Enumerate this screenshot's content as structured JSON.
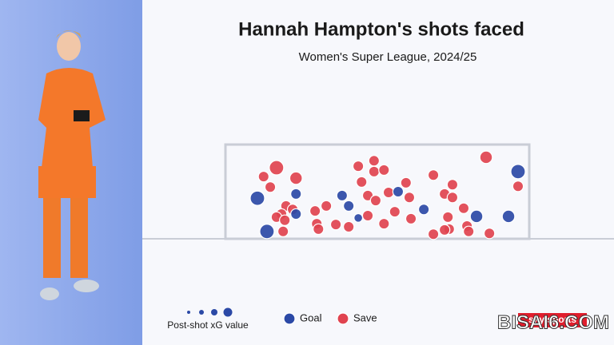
{
  "chart_data": {
    "type": "scatter",
    "title": "Hannah Hampton's shots faced",
    "subtitle": "Women's Super League, 2024/25",
    "size_label": "Post-shot xG value",
    "xlim": [
      0,
      7.32
    ],
    "ylim": [
      0,
      2.44
    ],
    "series": [
      {
        "name": "Goal",
        "color": "#2b49a6",
        "x": [
          0.77,
          1.7,
          2.81,
          2.97,
          4.16,
          4.78,
          3.2,
          1.7,
          1.0,
          6.05,
          6.82,
          7.05
        ],
        "y": [
          1.05,
          1.16,
          1.12,
          0.85,
          1.22,
          0.76,
          0.54,
          0.64,
          0.19,
          0.58,
          0.58,
          1.74
        ],
        "sizes": [
          0.5,
          0.3,
          0.3,
          0.3,
          0.3,
          0.3,
          0.2,
          0.3,
          0.5,
          0.4,
          0.4,
          0.5
        ]
      },
      {
        "name": "Save",
        "color": "#e0434f",
        "x": [
          1.23,
          0.92,
          1.7,
          1.08,
          3.2,
          3.58,
          3.58,
          3.82,
          3.28,
          4.35,
          5.01,
          6.28,
          5.47,
          7.05,
          3.43,
          3.62,
          3.93,
          4.43,
          5.28,
          5.47,
          1.46,
          1.35,
          1.62,
          2.16,
          2.43,
          2.2,
          1.23,
          1.43,
          1.39,
          2.24,
          2.66,
          2.97,
          3.43,
          3.82,
          4.08,
          4.47,
          5.74,
          5.36,
          5.39,
          5.01,
          5.28,
          5.82,
          5.86,
          6.36
        ],
        "y": [
          1.84,
          1.61,
          1.57,
          1.34,
          1.88,
          2.02,
          1.74,
          1.78,
          1.47,
          1.45,
          1.65,
          2.11,
          1.4,
          1.36,
          1.12,
          0.99,
          1.2,
          1.07,
          1.16,
          1.07,
          0.85,
          0.64,
          0.76,
          0.72,
          0.85,
          0.39,
          0.56,
          0.48,
          0.19,
          0.25,
          0.37,
          0.31,
          0.6,
          0.39,
          0.7,
          0.52,
          0.79,
          0.56,
          0.25,
          0.12,
          0.23,
          0.33,
          0.19,
          0.14
        ],
        "sizes": [
          0.5,
          0.3,
          0.4,
          0.3,
          0.3,
          0.3,
          0.3,
          0.3,
          0.3,
          0.3,
          0.3,
          0.4,
          0.3,
          0.3,
          0.3,
          0.3,
          0.3,
          0.3,
          0.3,
          0.3,
          0.3,
          0.3,
          0.3,
          0.3,
          0.3,
          0.3,
          0.3,
          0.3,
          0.3,
          0.3,
          0.3,
          0.3,
          0.3,
          0.3,
          0.3,
          0.3,
          0.3,
          0.3,
          0.3,
          0.3,
          0.3,
          0.3,
          0.3,
          0.3
        ]
      }
    ]
  },
  "branding": "sky sports",
  "watermark": "BISAI6.COM"
}
